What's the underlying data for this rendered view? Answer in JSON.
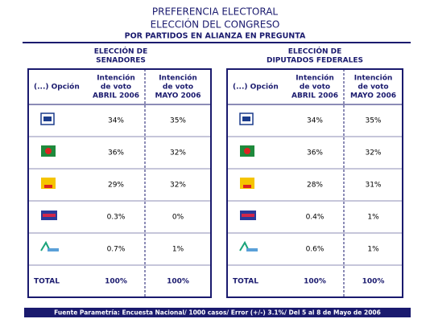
{
  "header": {
    "title": "PREFERENCIA ELECTORAL",
    "subtitle": "ELECCIÓN DEL CONGRESO",
    "note": "POR PARTIDOS EN ALIANZA EN PREGUNTA"
  },
  "tables": [
    {
      "title": [
        "ELECCIÓN DE",
        "SENADORES"
      ],
      "columns": [
        [
          "(...) Opción"
        ],
        [
          "Intención",
          "de voto",
          "ABRIL 2006"
        ],
        [
          "Intención",
          "de voto",
          "MAYO 2006"
        ]
      ],
      "rows": [
        [
          "34%",
          "35%"
        ],
        [
          "36%",
          "32%"
        ],
        [
          "29%",
          "32%"
        ],
        [
          "0.3%",
          "0%"
        ],
        [
          "0.7%",
          "1%"
        ]
      ],
      "total": [
        "TOTAL",
        "100%",
        "100%"
      ]
    },
    {
      "title": [
        "ELECCIÓN DE",
        "DIPUTADOS FEDERALES"
      ],
      "columns": [
        [
          "(...) Opción"
        ],
        [
          "Intención",
          "de voto",
          "ABRIL 2006"
        ],
        [
          "Intención",
          "de voto",
          "MAYO 2006"
        ]
      ],
      "rows": [
        [
          "34%",
          "35%"
        ],
        [
          "36%",
          "32%"
        ],
        [
          "28%",
          "31%"
        ],
        [
          "0.4%",
          "1%"
        ],
        [
          "0.6%",
          "1%"
        ]
      ],
      "total": [
        "TOTAL",
        "100%",
        "100%"
      ]
    }
  ],
  "footer": "Fuente Parametría: Encuesta Nacional/ 1000 casos/ Error (+/-) 3.1%/ Del 5 al 8 de Mayo  de 2006"
}
